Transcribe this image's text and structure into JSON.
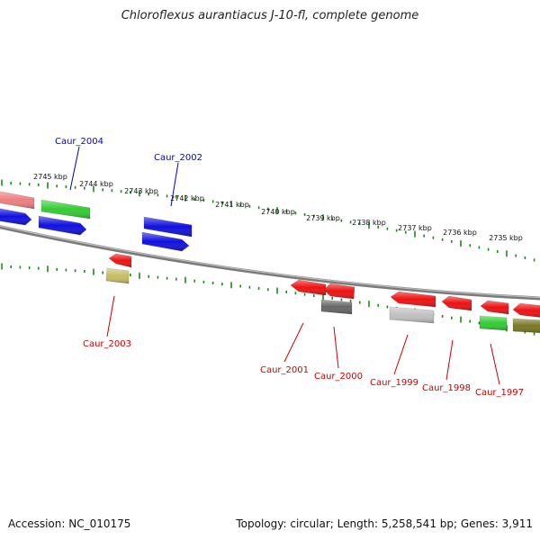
{
  "title": "Chloroflexus aurantiacus J-10-fl, complete genome",
  "footer": {
    "accession": "Accession: NC_010175",
    "summary": "Topology: circular; Length: 5,258,541 bp; Genes: 3,911"
  },
  "colors": {
    "tick": "#1a8a1a",
    "backbone": "#888888",
    "blue": "#1010e0",
    "red": "#ee1111",
    "pink": "#ee7f7f",
    "green": "#33cc33",
    "olive": "#777722",
    "khaki": "#c8bb66",
    "gray_dark": "#666666",
    "gray_light": "#c0c0c0",
    "label_blue": "#0000cc",
    "label_red": "#cc0000"
  },
  "kbp_labels": [
    "2745 kbp",
    "2744 kbp",
    "2743 kbp",
    "2742 kbp",
    "2741 kbp",
    "2740 kbp",
    "2739 kbp",
    "2738 kbp",
    "2737 kbp",
    "2736 kbp",
    "2735 kbp"
  ],
  "gene_labels": [
    {
      "text": "Caur_2004",
      "color": "label_blue"
    },
    {
      "text": "Caur_2002",
      "color": "label_blue"
    },
    {
      "text": "Caur_2003",
      "color": "label_red"
    },
    {
      "text": "Caur_2001",
      "color": "label_red"
    },
    {
      "text": "Caur_2000",
      "color": "label_red"
    },
    {
      "text": "Caur_1999",
      "color": "label_red"
    },
    {
      "text": "Caur_1998",
      "color": "label_red"
    },
    {
      "text": "Caur_1997",
      "color": "label_red"
    }
  ]
}
